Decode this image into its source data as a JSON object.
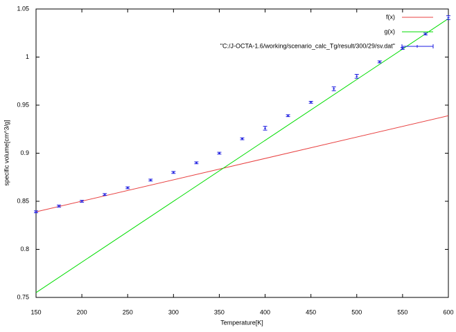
{
  "chart_data": {
    "type": "line",
    "xlabel": "Temperature[K]",
    "ylabel": "specific volume[cm^3/g]",
    "xlim": [
      150,
      600
    ],
    "ylim": [
      0.75,
      1.05
    ],
    "xticks": [
      150,
      200,
      250,
      300,
      350,
      400,
      450,
      500,
      550,
      600
    ],
    "yticks": [
      0.75,
      0.8,
      0.85,
      0.9,
      0.95,
      1,
      1.05
    ],
    "legend": "upper-right",
    "series": [
      {
        "name": "f(x)",
        "color": "#e84040",
        "style": "line",
        "x": [
          150,
          600
        ],
        "values": [
          0.839,
          0.939
        ]
      },
      {
        "name": "g(x)",
        "color": "#00dd00",
        "style": "line",
        "x": [
          150,
          600
        ],
        "values": [
          0.755,
          1.04
        ]
      },
      {
        "name": "\"C:/J-OCTA-1.6/working/scenario_calc_Tg/result/300/29/sv.dat\"",
        "color": "#1a1ae0",
        "style": "errorbars",
        "x": [
          150,
          175,
          200,
          225,
          250,
          275,
          300,
          325,
          350,
          375,
          400,
          425,
          450,
          475,
          500,
          525,
          550,
          575,
          600
        ],
        "values": [
          0.839,
          0.845,
          0.85,
          0.857,
          0.864,
          0.872,
          0.88,
          0.89,
          0.9,
          0.915,
          0.926,
          0.939,
          0.953,
          0.967,
          0.98,
          0.995,
          1.009,
          1.024,
          1.041
        ],
        "errors": [
          0.001,
          0.001,
          0.001,
          0.001,
          0.001,
          0.001,
          0.001,
          0.001,
          0.001,
          0.001,
          0.002,
          0.001,
          0.001,
          0.002,
          0.002,
          0.001,
          0.001,
          0.001,
          0.002
        ]
      }
    ]
  }
}
